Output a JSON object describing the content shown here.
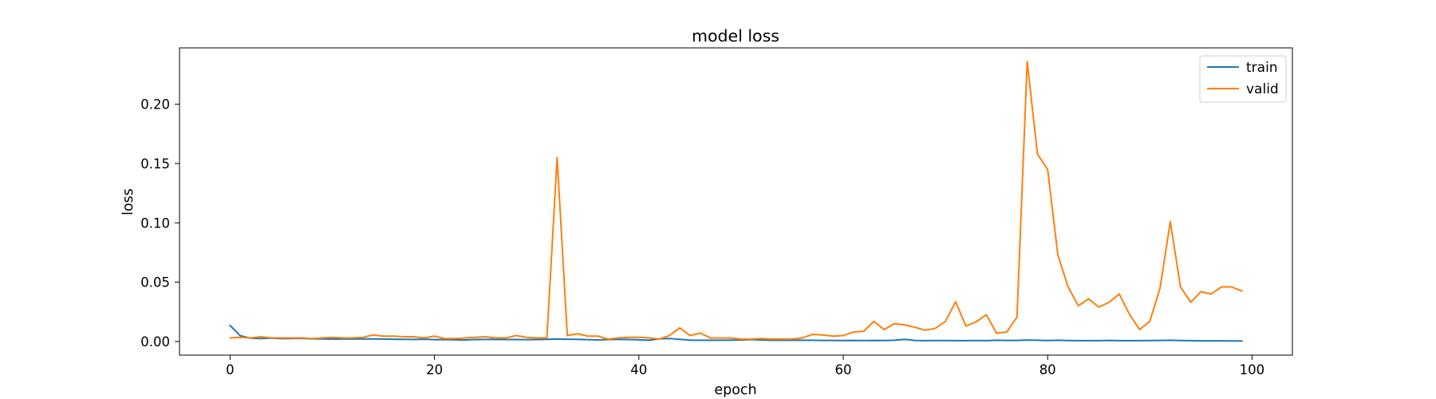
{
  "chart_data": {
    "type": "line",
    "title": "model loss",
    "xlabel": "epoch",
    "ylabel": "loss",
    "xlim": [
      -4.95,
      103.95
    ],
    "ylim": [
      -0.0115,
      0.2475
    ],
    "xticks": [
      0,
      20,
      40,
      60,
      80,
      100
    ],
    "xtick_labels": [
      "0",
      "20",
      "40",
      "60",
      "80",
      "100"
    ],
    "yticks": [
      0.0,
      0.05,
      0.1,
      0.15,
      0.2
    ],
    "ytick_labels": [
      "0.00",
      "0.05",
      "0.10",
      "0.15",
      "0.20"
    ],
    "grid": false,
    "legend_position": "top-right",
    "x": [
      0,
      1,
      2,
      3,
      4,
      5,
      6,
      7,
      8,
      9,
      10,
      11,
      12,
      13,
      14,
      15,
      16,
      17,
      18,
      19,
      20,
      21,
      22,
      23,
      24,
      25,
      26,
      27,
      28,
      29,
      30,
      31,
      32,
      33,
      34,
      35,
      36,
      37,
      38,
      39,
      40,
      41,
      42,
      43,
      44,
      45,
      46,
      47,
      48,
      49,
      50,
      51,
      52,
      53,
      54,
      55,
      56,
      57,
      58,
      59,
      60,
      61,
      62,
      63,
      64,
      65,
      66,
      67,
      68,
      69,
      70,
      71,
      72,
      73,
      74,
      75,
      76,
      77,
      78,
      79,
      80,
      81,
      82,
      83,
      84,
      85,
      86,
      87,
      88,
      89,
      90,
      91,
      92,
      93,
      94,
      95,
      96,
      97,
      98,
      99
    ],
    "series": [
      {
        "name": "train",
        "color": "#1f77b4",
        "values": [
          0.0135,
          0.0048,
          0.0028,
          0.0025,
          0.0028,
          0.0024,
          0.0025,
          0.0026,
          0.0022,
          0.0021,
          0.002,
          0.0021,
          0.002,
          0.0022,
          0.0021,
          0.002,
          0.0019,
          0.0018,
          0.0017,
          0.0019,
          0.0015,
          0.0016,
          0.0014,
          0.0013,
          0.0016,
          0.0017,
          0.0018,
          0.0016,
          0.0016,
          0.0015,
          0.0016,
          0.0018,
          0.002,
          0.0019,
          0.0018,
          0.0015,
          0.0013,
          0.0016,
          0.0018,
          0.0016,
          0.0014,
          0.001,
          0.0022,
          0.0025,
          0.0018,
          0.0011,
          0.001,
          0.001,
          0.001,
          0.0011,
          0.0013,
          0.0016,
          0.0012,
          0.001,
          0.001,
          0.001,
          0.001,
          0.001,
          0.0009,
          0.0009,
          0.0008,
          0.0009,
          0.0008,
          0.0009,
          0.0008,
          0.001,
          0.0018,
          0.0009,
          0.0007,
          0.0008,
          0.0008,
          0.0007,
          0.0007,
          0.0008,
          0.0007,
          0.001,
          0.0009,
          0.0009,
          0.0012,
          0.001,
          0.0008,
          0.001,
          0.0008,
          0.0007,
          0.0007,
          0.0007,
          0.0009,
          0.0007,
          0.0007,
          0.0007,
          0.0008,
          0.0009,
          0.001,
          0.0008,
          0.0007,
          0.0005,
          0.0005,
          0.0005,
          0.0004,
          0.0004
        ]
      },
      {
        "name": "valid",
        "color": "#ff7f0e",
        "values": [
          0.003,
          0.0035,
          0.003,
          0.004,
          0.003,
          0.003,
          0.003,
          0.003,
          0.0025,
          0.003,
          0.0035,
          0.003,
          0.003,
          0.0035,
          0.0055,
          0.0045,
          0.0045,
          0.004,
          0.004,
          0.003,
          0.0045,
          0.0025,
          0.0025,
          0.003,
          0.0035,
          0.004,
          0.003,
          0.003,
          0.005,
          0.0035,
          0.003,
          0.003,
          0.155,
          0.005,
          0.0065,
          0.0045,
          0.0045,
          0.002,
          0.003,
          0.0035,
          0.0035,
          0.003,
          0.002,
          0.005,
          0.0115,
          0.005,
          0.007,
          0.003,
          0.003,
          0.003,
          0.002,
          0.002,
          0.0025,
          0.002,
          0.002,
          0.002,
          0.003,
          0.006,
          0.0055,
          0.0045,
          0.005,
          0.008,
          0.0085,
          0.017,
          0.01,
          0.015,
          0.014,
          0.012,
          0.0095,
          0.011,
          0.017,
          0.0335,
          0.013,
          0.0165,
          0.0225,
          0.007,
          0.008,
          0.0205,
          0.236,
          0.158,
          0.145,
          0.073,
          0.046,
          0.03,
          0.036,
          0.029,
          0.033,
          0.04,
          0.023,
          0.01,
          0.017,
          0.045,
          0.101,
          0.046,
          0.033,
          0.042,
          0.04,
          0.046,
          0.046,
          0.0425
        ]
      }
    ]
  }
}
